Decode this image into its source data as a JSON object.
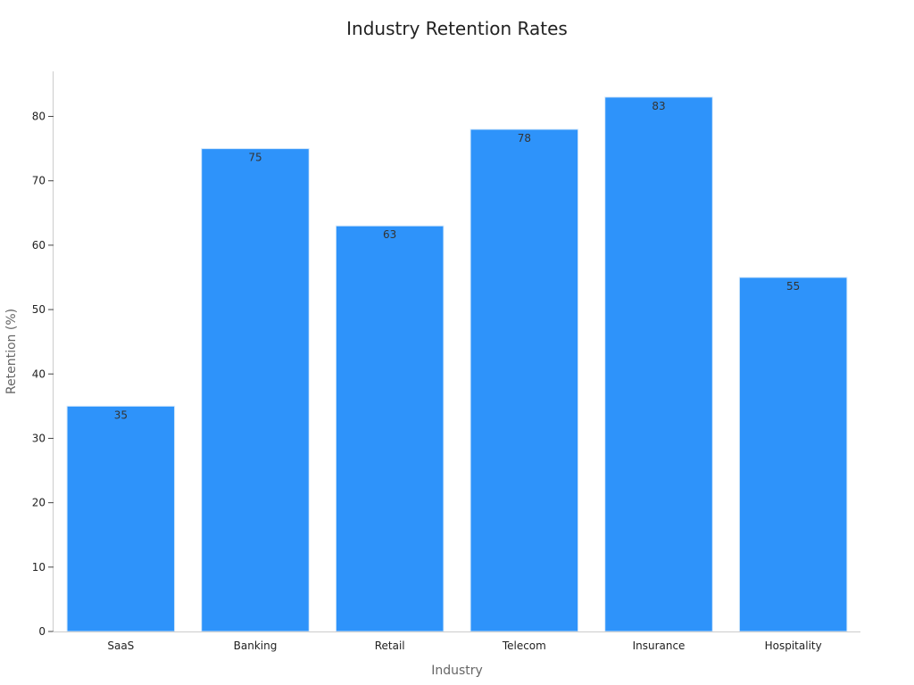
{
  "chart_data": {
    "type": "bar",
    "title": "Industry Retention Rates",
    "xlabel": "Industry",
    "ylabel": "Retention (%)",
    "categories": [
      "SaaS",
      "Banking",
      "Retail",
      "Telecom",
      "Insurance",
      "Hospitality"
    ],
    "values": [
      35,
      75,
      63,
      78,
      83,
      55
    ],
    "data_labels": [
      "35",
      "75",
      "63",
      "78",
      "83",
      "55"
    ],
    "yticks": [
      0,
      10,
      20,
      30,
      40,
      50,
      60,
      70,
      80
    ],
    "ytick_labels": [
      "0",
      "10",
      "20",
      "30",
      "40",
      "50",
      "60",
      "70",
      "80"
    ],
    "ylim": [
      0,
      87
    ],
    "grid": false,
    "legend": "none",
    "bar_color": "#2e93fa",
    "bar_edge_color": "#d6e9fb"
  }
}
